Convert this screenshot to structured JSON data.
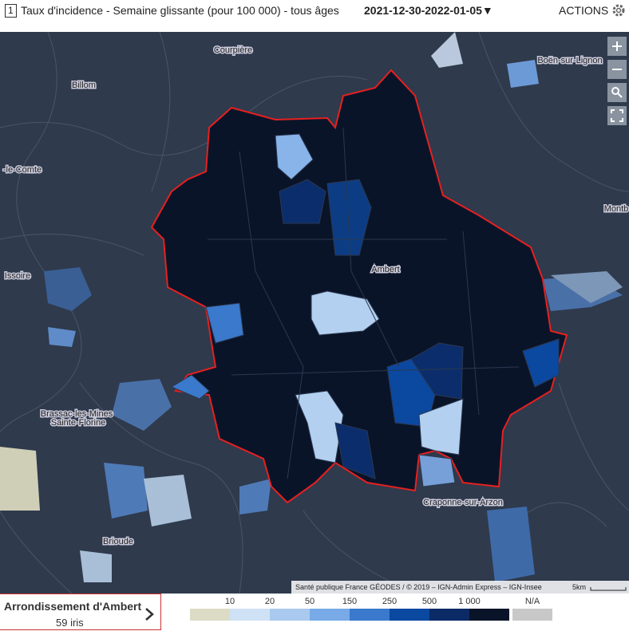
{
  "header": {
    "index": "1",
    "title": "Taux d'incidence - Semaine glissante (pour 100 000) - tous âges",
    "period": "2021-12-30-2022-01-05▼",
    "actions": "ACTIONS"
  },
  "places": [
    "Courpière",
    "Boën-sur-Lignon",
    "Billom",
    "-le-Comte",
    "Montb",
    "Issoire",
    "Ambert",
    "Brassac-les-Mines",
    "Sainte-Florine",
    "Craponne-sur-Arzon",
    "Brioude"
  ],
  "attribution": "Santé publique France GÉODES / © 2019 – IGN-Admin Express – IGN-Insee",
  "scale": "5km",
  "selection": {
    "name": "Arrondissement d'Ambert",
    "count": "59 iris"
  },
  "legend": {
    "labels": [
      "10",
      "20",
      "50",
      "150",
      "250",
      "500",
      "1 000"
    ],
    "na": "N/A",
    "colors": [
      "#dcdcc6",
      "#cfe1f5",
      "#a9c9ee",
      "#77aae6",
      "#3a79cc",
      "#0b48a0",
      "#0b2a66",
      "#0a1429"
    ],
    "na_color": "#c8c8c8"
  }
}
